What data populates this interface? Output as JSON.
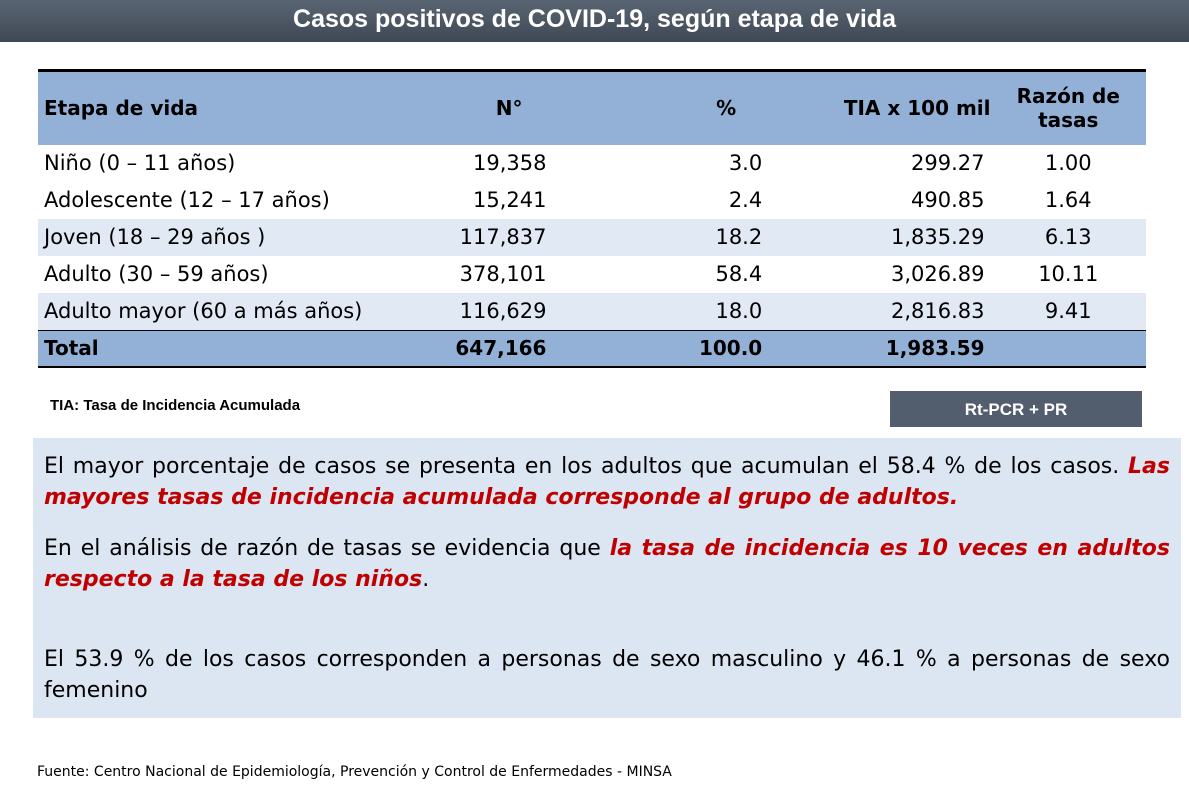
{
  "title": "Casos positivos de COVID-19, según etapa de vida",
  "table": {
    "headers": [
      "Etapa de vida",
      "N°",
      "%",
      "TIA x 100 mil",
      "Razón de tasas"
    ],
    "rows": [
      [
        "Niño (0 – 11 años)",
        "19,358",
        "3.0",
        "299.27",
        "1.00"
      ],
      [
        "Adolescente (12 – 17 años)",
        "15,241",
        "2.4",
        "490.85",
        "1.64"
      ],
      [
        "Joven (18 – 29 años )",
        "117,837",
        "18.2",
        "1,835.29",
        "6.13"
      ],
      [
        "Adulto (30 – 59 años)",
        "378,101",
        "58.4",
        "3,026.89",
        "10.11"
      ],
      [
        "Adulto mayor (60 a más años)",
        "116,629",
        "18.0",
        "2,816.83",
        "9.41"
      ]
    ],
    "total": [
      "Total",
      "647,166",
      "100.0",
      "1,983.59",
      ""
    ]
  },
  "footnote": "TIA: Tasa de Incidencia Acumulada",
  "method_badge": "Rt-PCR + PR",
  "paragraphs": {
    "p1_plain": "El mayor porcentaje de casos se presenta en los adultos que acumulan el 58.4 % de los casos. ",
    "p1_red": "Las mayores tasas de incidencia acumulada corresponde al grupo de adultos.",
    "p2_plain": "En el análisis de razón de tasas se evidencia que ",
    "p2_red": "la tasa de incidencia es 10 veces en adultos respecto a la tasa de los niños",
    "p2_end": ".",
    "p3": "El 53.9 % de los casos corresponden a personas de sexo masculino y 46.1 % a personas de sexo femenino"
  },
  "source": "Fuente: Centro Nacional de Epidemiología, Prevención y Control de Enfermedades - MINSA",
  "colors": {
    "header_blue": "#93b1d7",
    "row_alt": "#e1e9f4",
    "highlight_red": "#c00000",
    "title_bar": "#4a5563",
    "text_box": "#dce6f2"
  }
}
